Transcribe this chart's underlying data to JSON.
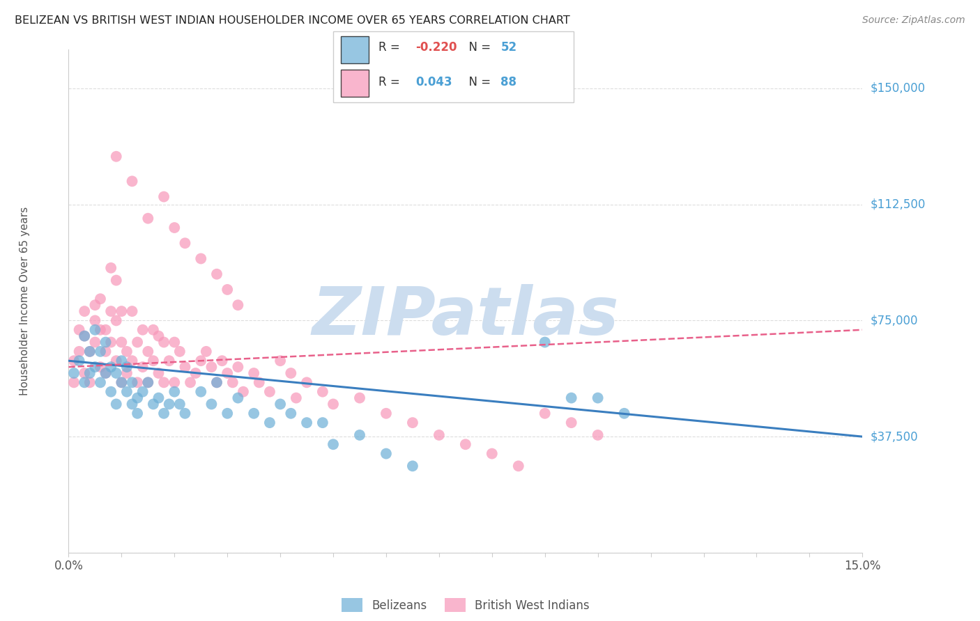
{
  "title": "BELIZEAN VS BRITISH WEST INDIAN HOUSEHOLDER INCOME OVER 65 YEARS CORRELATION CHART",
  "source": "Source: ZipAtlas.com",
  "ylabel": "Householder Income Over 65 years",
  "xlim": [
    0.0,
    0.15
  ],
  "ylim": [
    0,
    162500
  ],
  "yticks": [
    0,
    37500,
    75000,
    112500,
    150000
  ],
  "ytick_labels": [
    "",
    "$37,500",
    "$75,000",
    "$112,500",
    "$150,000"
  ],
  "blue_color": "#6baed6",
  "pink_color": "#f796b8",
  "blue_line_color": "#3a7ebf",
  "pink_line_color": "#e8608a",
  "blue_R": -0.22,
  "blue_N": 52,
  "pink_R": 0.043,
  "pink_N": 88,
  "blue_line_x0": 0.0,
  "blue_line_y0": 62000,
  "blue_line_x1": 0.15,
  "blue_line_y1": 37500,
  "pink_line_x0": 0.0,
  "pink_line_y0": 60000,
  "pink_line_x1": 0.15,
  "pink_line_y1": 72000,
  "belizeans_x": [
    0.001,
    0.002,
    0.003,
    0.003,
    0.004,
    0.004,
    0.005,
    0.005,
    0.006,
    0.006,
    0.007,
    0.007,
    0.008,
    0.008,
    0.009,
    0.009,
    0.01,
    0.01,
    0.011,
    0.011,
    0.012,
    0.012,
    0.013,
    0.013,
    0.014,
    0.015,
    0.016,
    0.017,
    0.018,
    0.019,
    0.02,
    0.021,
    0.022,
    0.025,
    0.027,
    0.028,
    0.03,
    0.032,
    0.035,
    0.038,
    0.04,
    0.042,
    0.045,
    0.048,
    0.05,
    0.055,
    0.06,
    0.065,
    0.09,
    0.095,
    0.1,
    0.105
  ],
  "belizeans_y": [
    58000,
    62000,
    70000,
    55000,
    65000,
    58000,
    72000,
    60000,
    65000,
    55000,
    68000,
    58000,
    60000,
    52000,
    58000,
    48000,
    55000,
    62000,
    60000,
    52000,
    55000,
    48000,
    50000,
    45000,
    52000,
    55000,
    48000,
    50000,
    45000,
    48000,
    52000,
    48000,
    45000,
    52000,
    48000,
    55000,
    45000,
    50000,
    45000,
    42000,
    48000,
    45000,
    42000,
    42000,
    35000,
    38000,
    32000,
    28000,
    68000,
    50000,
    50000,
    45000
  ],
  "bwi_x": [
    0.001,
    0.001,
    0.002,
    0.002,
    0.003,
    0.003,
    0.003,
    0.004,
    0.004,
    0.005,
    0.005,
    0.005,
    0.006,
    0.006,
    0.006,
    0.007,
    0.007,
    0.007,
    0.008,
    0.008,
    0.008,
    0.009,
    0.009,
    0.009,
    0.01,
    0.01,
    0.01,
    0.011,
    0.011,
    0.012,
    0.012,
    0.013,
    0.013,
    0.014,
    0.014,
    0.015,
    0.015,
    0.016,
    0.016,
    0.017,
    0.017,
    0.018,
    0.018,
    0.019,
    0.02,
    0.02,
    0.021,
    0.022,
    0.023,
    0.024,
    0.025,
    0.026,
    0.027,
    0.028,
    0.029,
    0.03,
    0.031,
    0.032,
    0.033,
    0.035,
    0.036,
    0.038,
    0.04,
    0.042,
    0.043,
    0.045,
    0.048,
    0.05,
    0.055,
    0.06,
    0.065,
    0.07,
    0.075,
    0.08,
    0.085,
    0.09,
    0.095,
    0.1,
    0.009,
    0.012,
    0.015,
    0.018,
    0.02,
    0.022,
    0.025,
    0.028,
    0.03,
    0.032
  ],
  "bwi_y": [
    62000,
    55000,
    65000,
    72000,
    58000,
    70000,
    78000,
    65000,
    55000,
    80000,
    68000,
    75000,
    72000,
    60000,
    82000,
    65000,
    58000,
    72000,
    92000,
    68000,
    78000,
    75000,
    88000,
    62000,
    78000,
    68000,
    55000,
    65000,
    58000,
    78000,
    62000,
    68000,
    55000,
    72000,
    60000,
    65000,
    55000,
    72000,
    62000,
    70000,
    58000,
    68000,
    55000,
    62000,
    68000,
    55000,
    65000,
    60000,
    55000,
    58000,
    62000,
    65000,
    60000,
    55000,
    62000,
    58000,
    55000,
    60000,
    52000,
    58000,
    55000,
    52000,
    62000,
    58000,
    50000,
    55000,
    52000,
    48000,
    50000,
    45000,
    42000,
    38000,
    35000,
    32000,
    28000,
    45000,
    42000,
    38000,
    128000,
    120000,
    108000,
    115000,
    105000,
    100000,
    95000,
    90000,
    85000,
    80000
  ],
  "watermark_text": "ZIPatlas",
  "watermark_color": "#ccddef",
  "grid_color": "#dddddd",
  "background_color": "#ffffff",
  "title_color": "#222222",
  "source_color": "#888888",
  "ylabel_color": "#555555",
  "tick_color": "#555555",
  "right_label_color": "#4a9fd4",
  "legend_r_color": "#333333",
  "legend_r_neg_color": "#e05050",
  "legend_n_color": "#4a9fd4"
}
